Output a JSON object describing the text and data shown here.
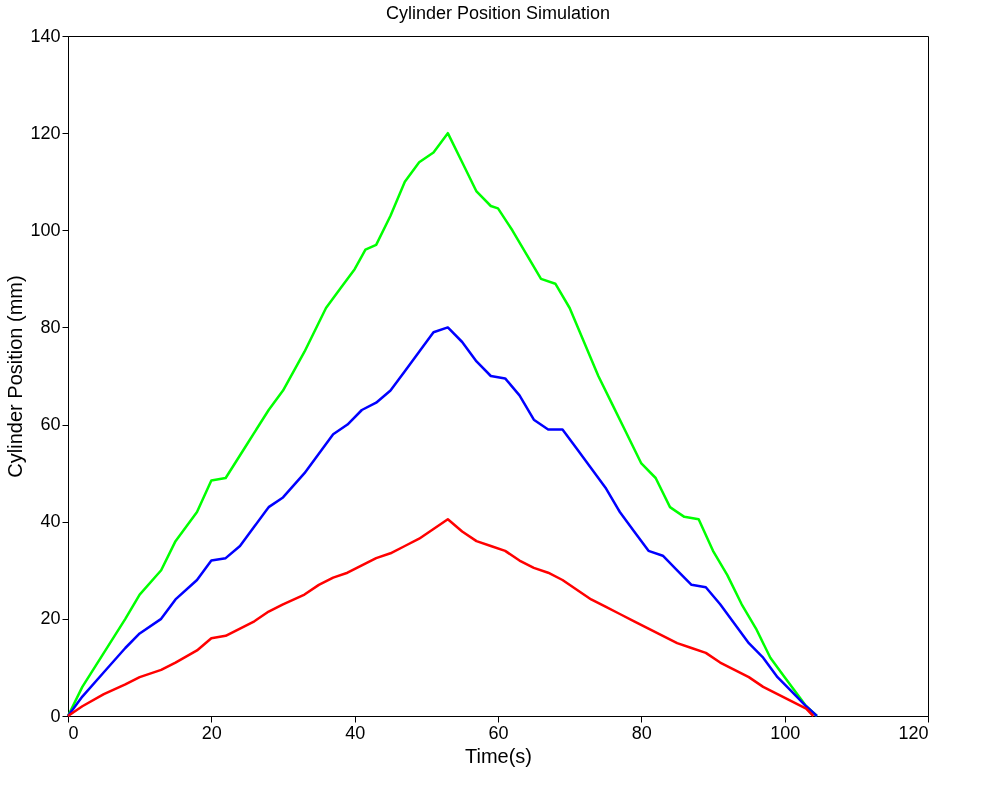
{
  "chart_data": {
    "type": "line",
    "title": "Cylinder Position Simulation",
    "xlabel": "Time(s)",
    "ylabel": "Cylinder Position (mm)",
    "xlim": [
      0,
      120
    ],
    "xticks": [
      0,
      20,
      40,
      60,
      80,
      100,
      120
    ],
    "ylim": [
      0,
      140
    ],
    "yticks": [
      0,
      20,
      40,
      60,
      80,
      100,
      120,
      140
    ],
    "grid": false,
    "legend": false,
    "line_style": "solid",
    "marker": "none",
    "series": [
      {
        "color": "#00ff00",
        "x": [
          0,
          2,
          5,
          8,
          10,
          13,
          15,
          18,
          20,
          22,
          25,
          28,
          30,
          33,
          36,
          38,
          40,
          41.5,
          43,
          45,
          47,
          49,
          51,
          53,
          55,
          57,
          59,
          60,
          62,
          64,
          66,
          68,
          70,
          72,
          74,
          76,
          78,
          80,
          82,
          84,
          86,
          88,
          90,
          92,
          94,
          96,
          98,
          100,
          102,
          103,
          104.5
        ],
        "values": [
          0,
          6,
          13,
          20,
          25,
          30,
          36,
          42,
          48.5,
          49,
          56,
          63,
          67,
          75,
          84,
          88,
          92,
          96,
          97,
          103,
          110,
          114,
          116,
          120,
          114,
          108,
          105,
          104.5,
          100,
          95,
          90,
          89,
          84,
          77,
          70,
          64,
          58,
          52,
          49,
          43,
          41,
          40.5,
          34,
          29,
          23,
          18,
          12,
          8,
          4,
          2,
          0
        ]
      },
      {
        "color": "#0000ff",
        "x": [
          0,
          2,
          5,
          8,
          10,
          13,
          15,
          18,
          20,
          22,
          24,
          26,
          28,
          30,
          33,
          35,
          37,
          39,
          41,
          43,
          45,
          47,
          49,
          51,
          53,
          55,
          57,
          59,
          61,
          63,
          65,
          67,
          69,
          71,
          73,
          75,
          77,
          79,
          81,
          83,
          85,
          87,
          89,
          91,
          93,
          95,
          97,
          99,
          101,
          103,
          104.5
        ],
        "values": [
          0,
          4,
          9,
          14,
          17,
          20,
          24,
          28,
          32,
          32.5,
          35,
          39,
          43,
          45,
          50,
          54,
          58,
          60,
          63,
          64.5,
          67,
          71,
          75,
          79,
          80,
          77,
          73,
          70,
          69.5,
          66,
          61,
          59,
          59,
          55,
          51,
          47,
          42,
          38,
          34,
          33,
          30,
          27,
          26.5,
          23,
          19,
          15,
          12,
          8,
          5,
          2,
          0
        ]
      },
      {
        "color": "#ff0000",
        "x": [
          0,
          2,
          5,
          8,
          10,
          13,
          15,
          18,
          20,
          22,
          24,
          26,
          28,
          30,
          33,
          35,
          37,
          39,
          41,
          43,
          45,
          47,
          49,
          51,
          53,
          55,
          57,
          59,
          61,
          63,
          65,
          67,
          69,
          71,
          73,
          75,
          77,
          79,
          81,
          83,
          85,
          87,
          89,
          91,
          93,
          95,
          97,
          99,
          101,
          103,
          104
        ],
        "values": [
          0,
          2,
          4.5,
          6.5,
          8,
          9.5,
          11,
          13.5,
          16,
          16.5,
          18,
          19.5,
          21.5,
          23,
          25,
          27,
          28.5,
          29.5,
          31,
          32.5,
          33.5,
          35,
          36.5,
          38.5,
          40.5,
          38,
          36,
          35,
          34,
          32,
          30.5,
          29.5,
          28,
          26,
          24,
          22.5,
          21,
          19.5,
          18,
          16.5,
          15,
          14,
          13,
          11,
          9.5,
          8,
          6,
          4.5,
          3,
          1.5,
          0
        ]
      }
    ]
  }
}
